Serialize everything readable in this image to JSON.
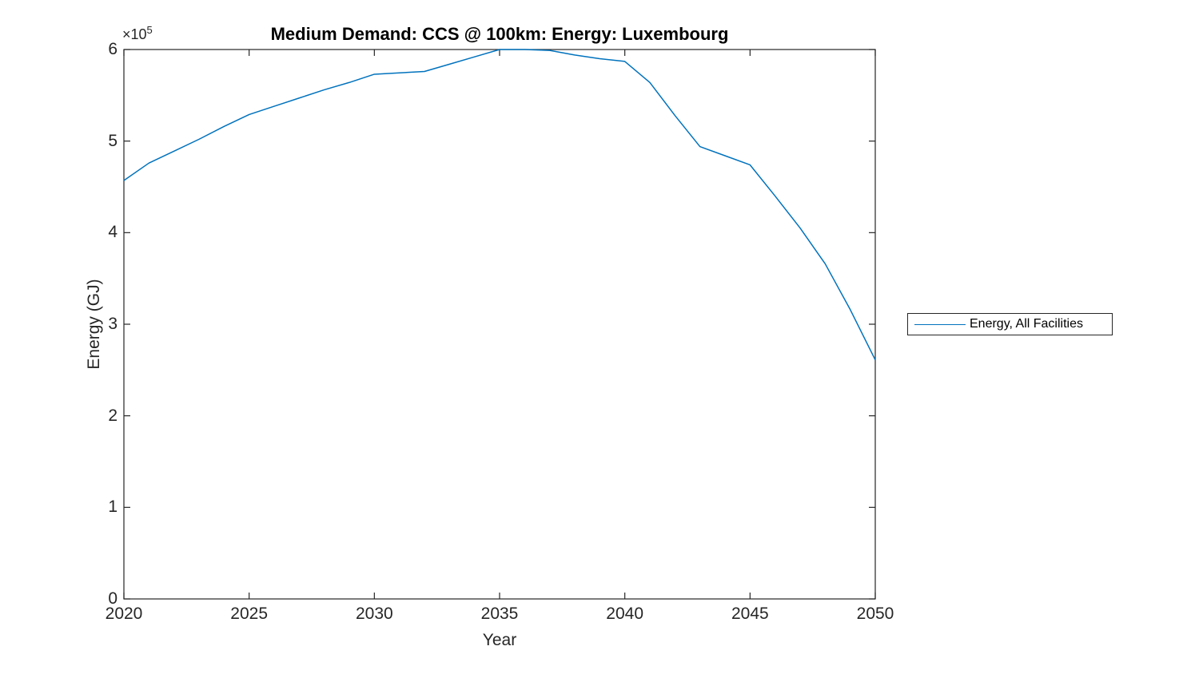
{
  "chart_data": {
    "type": "line",
    "title": "Medium Demand: CCS @ 100km: Energy: Luxembourg",
    "xlabel": "Year",
    "ylabel": "Energy (GJ)",
    "y_exponent": {
      "base": "×10",
      "exp": "5"
    },
    "xlim": [
      2020,
      2050
    ],
    "ylim": [
      0,
      600000
    ],
    "x_ticks": [
      2020,
      2025,
      2030,
      2035,
      2040,
      2045,
      2050
    ],
    "y_ticks": [
      0,
      100000,
      200000,
      300000,
      400000,
      500000,
      600000
    ],
    "y_tick_labels": [
      "0",
      "1",
      "2",
      "3",
      "4",
      "5",
      "6"
    ],
    "grid": false,
    "axis_color": "#262626",
    "legend": {
      "position": "right-outside",
      "entries": [
        {
          "label": "Energy, All Facilities",
          "color": "#0072BD"
        }
      ]
    },
    "series": [
      {
        "name": "Energy, All Facilities",
        "color": "#0072BD",
        "x": [
          2020,
          2021,
          2022,
          2023,
          2024,
          2025,
          2026,
          2027,
          2028,
          2029,
          2030,
          2031,
          2032,
          2033,
          2034,
          2035,
          2036,
          2037,
          2038,
          2039,
          2040,
          2041,
          2042,
          2043,
          2044,
          2045,
          2046,
          2047,
          2048,
          2049,
          2050
        ],
        "y": [
          457000,
          476000,
          489000,
          502000,
          516000,
          529000,
          538000,
          547000,
          556000,
          564000,
          573000,
          574500,
          576000,
          584000,
          592000,
          600000,
          600000,
          599000,
          594000,
          590000,
          587000,
          564000,
          528000,
          494000,
          484000,
          474000,
          440000,
          405000,
          366000,
          316000,
          261000
        ]
      }
    ]
  }
}
